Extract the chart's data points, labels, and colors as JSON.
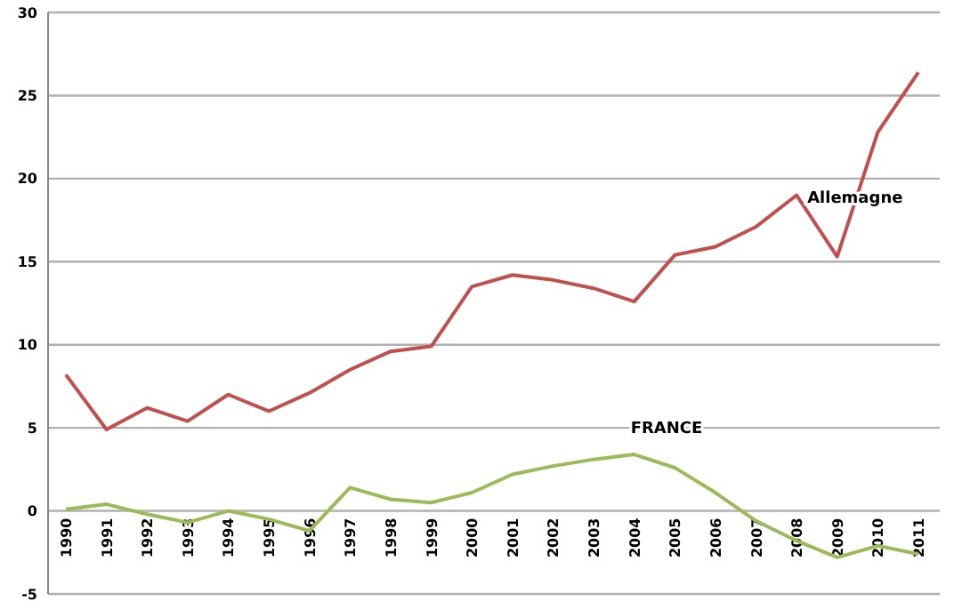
{
  "chart_data": {
    "type": "line",
    "categories": [
      "1990",
      "1991",
      "1992",
      "1993",
      "1994",
      "1995",
      "1996",
      "1997",
      "1998",
      "1999",
      "2000",
      "2001",
      "2002",
      "2003",
      "2004",
      "2005",
      "2006",
      "2007",
      "2008",
      "2009",
      "2010",
      "2011"
    ],
    "series": [
      {
        "name": "Allemagne",
        "color": "#c0504d",
        "values": [
          8.2,
          4.9,
          6.2,
          5.4,
          7.0,
          6.0,
          7.1,
          8.5,
          9.6,
          9.9,
          13.5,
          14.2,
          13.9,
          13.4,
          12.6,
          15.4,
          15.9,
          17.1,
          19.0,
          15.3,
          22.8,
          26.4
        ]
      },
      {
        "name": "FRANCE",
        "color": "#9bbb59",
        "values": [
          0.1,
          0.4,
          -0.2,
          -0.7,
          0.0,
          -0.5,
          -1.2,
          1.4,
          0.7,
          0.5,
          1.1,
          2.2,
          2.7,
          3.1,
          3.4,
          2.6,
          1.1,
          -0.6,
          -1.8,
          -2.8,
          -2.1,
          -2.6
        ]
      }
    ],
    "ylim": [
      -5,
      30
    ],
    "yticks": [
      -5,
      0,
      5,
      10,
      15,
      20,
      25,
      30
    ],
    "grid": "y",
    "marker": "none",
    "line_style": "solid"
  }
}
